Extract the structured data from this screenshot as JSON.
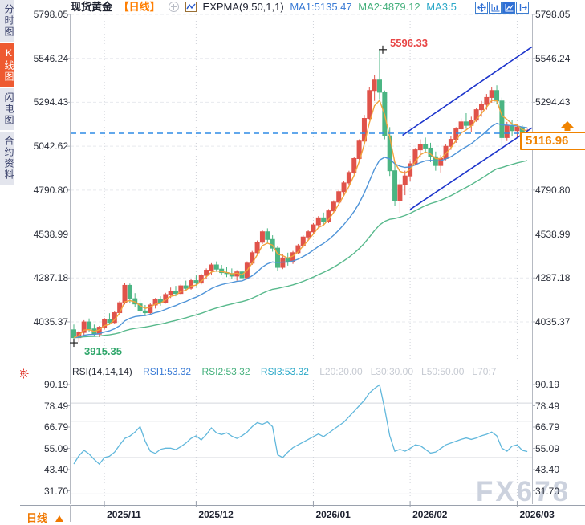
{
  "header": {
    "symbol": "现货黄金",
    "period": "【日线】",
    "indicator": "EXPMA(9,50,1,1)",
    "ma1": "MA1:5135.47",
    "ma2": "MA2:4879.12",
    "ma3": "MA3:5"
  },
  "toolbar_icons": [
    "pan-icon",
    "bar-scale-chart-icon",
    "line-chart-icon",
    "exit-chart-icon"
  ],
  "sidebar": {
    "items": [
      {
        "label": "分时图",
        "active": false
      },
      {
        "label": "K线图",
        "active": true
      },
      {
        "label": "闪电图",
        "active": false
      },
      {
        "label": "合约资料",
        "active": false
      }
    ]
  },
  "axis": {
    "price_labels": [
      "5798.05",
      "5546.24",
      "5294.43",
      "5042.62",
      "4790.80",
      "4538.99",
      "4287.18",
      "4035.37"
    ],
    "rsi_labels": [
      "90.19",
      "78.49",
      "66.79",
      "55.09",
      "43.40",
      "31.70"
    ]
  },
  "rsi_header": {
    "name": "RSI(14,14,14)",
    "rsi1": "RSI1:53.32",
    "rsi2": "RSI2:53.32",
    "rsi3": "RSI3:53.32",
    "levels": [
      "L20:20.00",
      "L30:30.00",
      "L50:50.00",
      "L70:7"
    ]
  },
  "bottom": {
    "period_label": "日线",
    "x_labels": [
      "2025/11",
      "2025/12",
      "2026/01",
      "2026/02",
      "2026/03"
    ]
  },
  "annotations": {
    "high": "5596.33",
    "low": "3915.35",
    "last_price": "5116.96"
  },
  "watermark": "FX678",
  "colors": {
    "up": "#e0534a",
    "down": "#4bb583",
    "ema_fast": "#f2a23c",
    "ema_mid": "#4f94d8",
    "ema_slow": "#58b98c",
    "channel": "#1d35cc",
    "last_price_line": "#2f8be6",
    "rsi_line": "#62b8dc",
    "grid_dashed": "#e7e9ee",
    "grid_month": "#cfd2d9",
    "rsi_grid": "#d4d7dd",
    "axis_line": "#b6bac2",
    "accent_orange": "#f07800",
    "tag_orange": "#f08300",
    "annotation_high": "#e84545",
    "annotation_low": "#2fa66a",
    "active_tab": "#ee5a31"
  },
  "chart_data": {
    "type": "candlestick",
    "title": "现货黄金 日线 (spot gold daily)",
    "price_axis_values": [
      5798.05,
      5546.24,
      5294.43,
      5042.62,
      4790.8,
      4538.99,
      4287.18,
      4035.37
    ],
    "rsi_axis_values": [
      90.19,
      78.49,
      66.79,
      55.09,
      43.4,
      31.7
    ],
    "rsi_level_lines": [
      80,
      70,
      50,
      30
    ],
    "x_tick_labels": [
      "2025/11",
      "2025/12",
      "2026/01",
      "2026/02",
      "2026/03"
    ],
    "x_tick_indices": [
      6,
      24,
      47,
      66,
      87
    ],
    "high_annotation": {
      "index": 60,
      "price": 5596.33
    },
    "low_annotation": {
      "index": 0,
      "price": 3915.35
    },
    "last_price": 5116.96,
    "ema_periods": {
      "fast": 4,
      "mid": 16,
      "slow": 48
    },
    "trend_channel": {
      "upper": {
        "i1": 64.5,
        "p1": 5105,
        "i2": 89.9,
        "p2": 5612
      },
      "lower": {
        "i1": 66.0,
        "p1": 4680,
        "i2": 89.9,
        "p2": 5148
      }
    },
    "candles_ohlc": [
      [
        3990,
        4020,
        3915.35,
        3945
      ],
      [
        3945,
        3985,
        3920,
        3975
      ],
      [
        3975,
        4045,
        3960,
        4035
      ],
      [
        4035,
        4055,
        3980,
        3995
      ],
      [
        3995,
        4020,
        3950,
        3965
      ],
      [
        3965,
        4012,
        3948,
        4005
      ],
      [
        4005,
        4058,
        3992,
        4048
      ],
      [
        4048,
        4085,
        4020,
        4032
      ],
      [
        4032,
        4095,
        4025,
        4088
      ],
      [
        4088,
        4155,
        4078,
        4145
      ],
      [
        4145,
        4258,
        4135,
        4245
      ],
      [
        4245,
        4255,
        4145,
        4168
      ],
      [
        4168,
        4200,
        4118,
        4138
      ],
      [
        4138,
        4162,
        4078,
        4098
      ],
      [
        4098,
        4132,
        4068,
        4088
      ],
      [
        4088,
        4142,
        4080,
        4132
      ],
      [
        4132,
        4172,
        4112,
        4162
      ],
      [
        4162,
        4182,
        4128,
        4148
      ],
      [
        4148,
        4202,
        4140,
        4192
      ],
      [
        4192,
        4232,
        4172,
        4212
      ],
      [
        4212,
        4242,
        4182,
        4198
      ],
      [
        4198,
        4252,
        4190,
        4242
      ],
      [
        4242,
        4272,
        4212,
        4228
      ],
      [
        4228,
        4282,
        4220,
        4272
      ],
      [
        4272,
        4302,
        4240,
        4258
      ],
      [
        4258,
        4312,
        4250,
        4302
      ],
      [
        4302,
        4342,
        4282,
        4332
      ],
      [
        4332,
        4372,
        4302,
        4362
      ],
      [
        4362,
        4382,
        4322,
        4338
      ],
      [
        4338,
        4362,
        4302,
        4318
      ],
      [
        4318,
        4352,
        4292,
        4312
      ],
      [
        4312,
        4342,
        4282,
        4298
      ],
      [
        4298,
        4332,
        4272,
        4322
      ],
      [
        4322,
        4332,
        4278,
        4288
      ],
      [
        4288,
        4382,
        4282,
        4372
      ],
      [
        4372,
        4442,
        4362,
        4432
      ],
      [
        4432,
        4502,
        4422,
        4492
      ],
      [
        4492,
        4562,
        4482,
        4552
      ],
      [
        4552,
        4572,
        4488,
        4508
      ],
      [
        4508,
        4532,
        4438,
        4458
      ],
      [
        4458,
        4468,
        4328,
        4348
      ],
      [
        4348,
        4422,
        4338,
        4402
      ],
      [
        4402,
        4432,
        4358,
        4378
      ],
      [
        4378,
        4442,
        4368,
        4432
      ],
      [
        4432,
        4482,
        4422,
        4472
      ],
      [
        4472,
        4532,
        4462,
        4522
      ],
      [
        4522,
        4562,
        4502,
        4552
      ],
      [
        4552,
        4602,
        4542,
        4592
      ],
      [
        4592,
        4642,
        4572,
        4632
      ],
      [
        4632,
        4662,
        4592,
        4612
      ],
      [
        4612,
        4682,
        4602,
        4672
      ],
      [
        4672,
        4732,
        4662,
        4722
      ],
      [
        4722,
        4792,
        4712,
        4782
      ],
      [
        4782,
        4842,
        4762,
        4832
      ],
      [
        4832,
        4902,
        4822,
        4892
      ],
      [
        4892,
        4982,
        4882,
        4972
      ],
      [
        4972,
        5082,
        4962,
        5072
      ],
      [
        5072,
        5222,
        5062,
        5202
      ],
      [
        5202,
        5382,
        5192,
        5362
      ],
      [
        5362,
        5452,
        5302,
        5422
      ],
      [
        5422,
        5596.33,
        5312,
        5352
      ],
      [
        5352,
        5362,
        5082,
        5102
      ],
      [
        5102,
        5152,
        4872,
        4902
      ],
      [
        4902,
        4952,
        4702,
        4732
      ],
      [
        4732,
        4852,
        4662,
        4822
      ],
      [
        4822,
        4902,
        4762,
        4872
      ],
      [
        4872,
        4962,
        4842,
        4942
      ],
      [
        4942,
        5032,
        4932,
        5022
      ],
      [
        5022,
        5082,
        4982,
        5052
      ],
      [
        5052,
        5092,
        5002,
        5032
      ],
      [
        5032,
        5062,
        4952,
        4982
      ],
      [
        4982,
        5012,
        4902,
        4932
      ],
      [
        4932,
        4992,
        4892,
        4972
      ],
      [
        4972,
        5052,
        4962,
        5042
      ],
      [
        5042,
        5102,
        5022,
        5082
      ],
      [
        5082,
        5152,
        5062,
        5142
      ],
      [
        5142,
        5202,
        5112,
        5182
      ],
      [
        5182,
        5232,
        5142,
        5162
      ],
      [
        5162,
        5212,
        5122,
        5192
      ],
      [
        5192,
        5262,
        5182,
        5252
      ],
      [
        5252,
        5302,
        5212,
        5282
      ],
      [
        5282,
        5342,
        5252,
        5322
      ],
      [
        5322,
        5382,
        5292,
        5362
      ],
      [
        5362,
        5392,
        5282,
        5302
      ],
      [
        5302,
        5322,
        5022,
        5092
      ],
      [
        5092,
        5182,
        5072,
        5162
      ],
      [
        5162,
        5192,
        5102,
        5132
      ],
      [
        5132,
        5172,
        5092,
        5152
      ],
      [
        5152,
        5162,
        5082,
        5102
      ],
      [
        5102,
        5142,
        5062,
        5116.96
      ]
    ],
    "rsi_values": [
      46.5,
      51,
      54,
      52,
      49,
      46.4,
      50,
      50.7,
      53,
      57,
      60.5,
      61.8,
      64,
      67,
      59,
      53.5,
      52.3,
      54.5,
      55.2,
      55.2,
      54.4,
      56,
      58,
      60.5,
      62,
      59.7,
      62.7,
      66.3,
      63.6,
      62.7,
      63.6,
      61.8,
      60.5,
      62,
      64,
      67,
      69.2,
      68.3,
      69.6,
      67,
      51.5,
      50,
      53,
      55.5,
      57,
      58.5,
      60,
      61.5,
      63,
      61.5,
      63.5,
      65.5,
      67.5,
      69.5,
      72.5,
      75.5,
      78.5,
      81.5,
      85.5,
      88,
      90,
      77,
      62,
      53.5,
      54.5,
      53.5,
      55,
      57,
      56.5,
      54.5,
      52.5,
      53,
      55,
      57,
      58,
      59,
      60,
      60.8,
      60,
      60.8,
      62,
      62.8,
      64,
      62,
      55.2,
      53.5,
      56.3,
      57,
      54,
      53.32
    ]
  }
}
